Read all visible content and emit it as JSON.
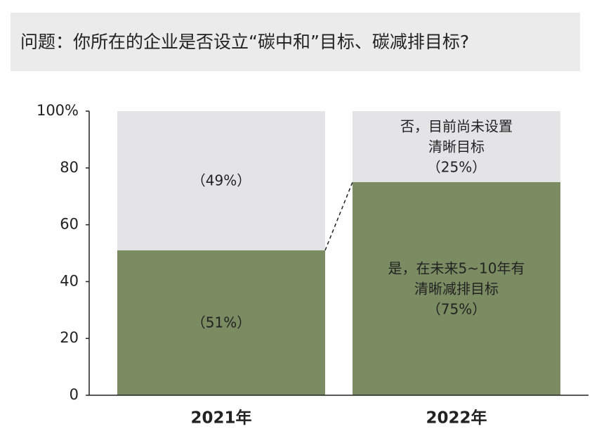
{
  "chart_data": {
    "type": "stacked-bar",
    "title": "问题：你所在的企业是否设立“碳中和”目标、碳减排目标?",
    "categories": [
      "2021年",
      "2022年"
    ],
    "series": [
      {
        "name": "是，在未来5~10年有清晰减排目标",
        "color": "#7b8c63",
        "values": [
          51,
          75
        ],
        "value_labels": [
          "（51%）",
          "（75%）"
        ]
      },
      {
        "name": "否，目前尚未设置清晰目标",
        "color": "#e4e4e6",
        "values": [
          49,
          25
        ],
        "value_labels": [
          "（49%）",
          "（25%）"
        ]
      }
    ],
    "ylim": [
      0,
      100
    ],
    "yticks": [
      0,
      20,
      40,
      60,
      80,
      {
        "value": 100,
        "label": "100%"
      }
    ]
  }
}
